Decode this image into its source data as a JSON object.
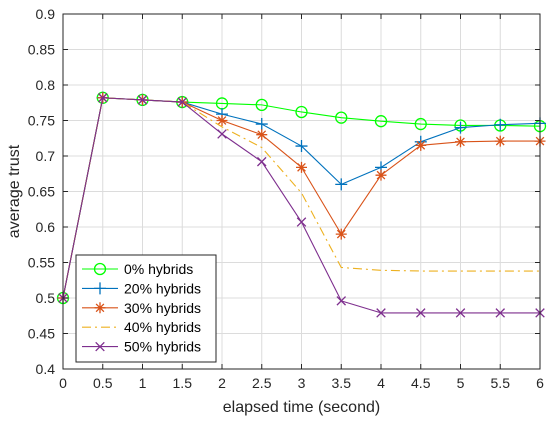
{
  "chart_data": {
    "type": "line",
    "xlabel": "elapsed time (second)",
    "ylabel": "average trust",
    "xlim": [
      0,
      6
    ],
    "ylim": [
      0.4,
      0.9
    ],
    "xticks": [
      0,
      0.5,
      1,
      1.5,
      2,
      2.5,
      3,
      3.5,
      4,
      4.5,
      5,
      5.5,
      6
    ],
    "xtick_labels": [
      "0",
      "0.5",
      "1",
      "1.5",
      "2",
      "2.5",
      "3",
      "3.5",
      "4",
      "4.5",
      "5",
      "5.5",
      "6"
    ],
    "yticks": [
      0.4,
      0.45,
      0.5,
      0.55,
      0.6,
      0.65,
      0.7,
      0.75,
      0.8,
      0.85,
      0.9
    ],
    "ytick_labels": [
      "0.4",
      "0.45",
      "0.5",
      "0.55",
      "0.6",
      "0.65",
      "0.7",
      "0.75",
      "0.8",
      "0.85",
      "0.9"
    ],
    "grid": true,
    "legend_position": "bottom-left",
    "series": [
      {
        "name": "0% hybrids",
        "color": "#00ff00",
        "marker": "circle",
        "line_style": "solid",
        "x": [
          0,
          0.5,
          1,
          1.5,
          2,
          2.5,
          3,
          3.5,
          4,
          4.5,
          5,
          5.5,
          6
        ],
        "y": [
          0.5,
          0.782,
          0.779,
          0.776,
          0.774,
          0.772,
          0.762,
          0.754,
          0.749,
          0.745,
          0.743,
          0.743,
          0.742
        ]
      },
      {
        "name": "20% hybrids",
        "color": "#0072bd",
        "marker": "plus",
        "line_style": "solid",
        "x": [
          0,
          0.5,
          1,
          1.5,
          2,
          2.5,
          3,
          3.5,
          4,
          4.5,
          5,
          5.5,
          6
        ],
        "y": [
          0.5,
          0.782,
          0.779,
          0.776,
          0.759,
          0.745,
          0.714,
          0.66,
          0.684,
          0.72,
          0.74,
          0.744,
          0.746
        ]
      },
      {
        "name": "30% hybrids",
        "color": "#d95319",
        "marker": "asterisk",
        "line_style": "solid",
        "x": [
          0,
          0.5,
          1,
          1.5,
          2,
          2.5,
          3,
          3.5,
          4,
          4.5,
          5,
          5.5,
          6
        ],
        "y": [
          0.5,
          0.782,
          0.779,
          0.776,
          0.75,
          0.73,
          0.684,
          0.59,
          0.673,
          0.715,
          0.72,
          0.721,
          0.721
        ]
      },
      {
        "name": "40% hybrids",
        "color": "#edb120",
        "marker": "none",
        "line_style": "dashdot",
        "x": [
          0,
          0.5,
          1,
          1.5,
          2,
          2.5,
          3,
          3.5,
          4,
          4.5,
          5,
          5.5,
          6
        ],
        "y": [
          0.5,
          0.782,
          0.779,
          0.776,
          0.741,
          0.712,
          0.648,
          0.543,
          0.539,
          0.538,
          0.538,
          0.538,
          0.538
        ]
      },
      {
        "name": "50% hybrids",
        "color": "#7e2f8e",
        "marker": "x",
        "line_style": "solid",
        "x": [
          0,
          0.5,
          1,
          1.5,
          2,
          2.5,
          3,
          3.5,
          4,
          4.5,
          5,
          5.5,
          6
        ],
        "y": [
          0.5,
          0.782,
          0.779,
          0.776,
          0.731,
          0.692,
          0.607,
          0.496,
          0.479,
          0.479,
          0.479,
          0.479,
          0.479
        ]
      }
    ]
  }
}
